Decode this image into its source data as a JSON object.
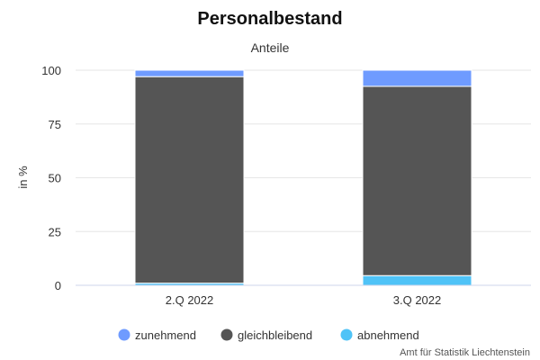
{
  "chart_data": {
    "type": "bar",
    "stacked": true,
    "title": "Personalbestand",
    "subtitle": "Anteile",
    "xlabel": "",
    "ylabel": "in %",
    "ylim": [
      0,
      100
    ],
    "yticks": [
      0,
      25,
      50,
      75,
      100
    ],
    "grid": true,
    "legend_position": "bottom",
    "categories": [
      "2.Q 2022",
      "3.Q 2022"
    ],
    "series": [
      {
        "name": "abnehmend",
        "color": "#4fc3f7",
        "values": [
          1,
          4.5
        ]
      },
      {
        "name": "gleichbleibend",
        "color": "#555555",
        "values": [
          96,
          88
        ]
      },
      {
        "name": "zunehmend",
        "color": "#6f9bff",
        "values": [
          3,
          7.5
        ]
      }
    ],
    "legend_order": [
      "zunehmend",
      "gleichbleibend",
      "abnehmend"
    ],
    "credit": "Amt für Statistik Liechtenstein"
  }
}
